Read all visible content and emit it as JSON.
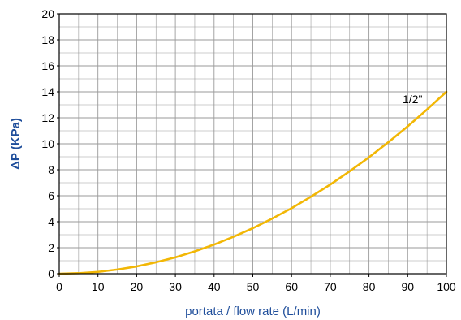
{
  "chart_data": {
    "type": "line",
    "title": "",
    "xlabel": "portata / flow rate (L/min)",
    "ylabel": "ΔP (KPa)",
    "xlim": [
      0,
      100
    ],
    "ylim": [
      0,
      20
    ],
    "x_ticks": [
      0,
      10,
      20,
      30,
      40,
      50,
      60,
      70,
      80,
      90,
      100
    ],
    "y_ticks": [
      0,
      2,
      4,
      6,
      8,
      10,
      12,
      14,
      16,
      18,
      20
    ],
    "grid": true,
    "series": [
      {
        "name": "1/2\"",
        "color": "#f2b705",
        "x": [
          0,
          5,
          10,
          15,
          20,
          25,
          30,
          35,
          40,
          45,
          50,
          55,
          60,
          65,
          70,
          75,
          80,
          85,
          90,
          95,
          100
        ],
        "y": [
          0,
          0.04,
          0.14,
          0.32,
          0.56,
          0.88,
          1.26,
          1.72,
          2.24,
          2.84,
          3.5,
          4.24,
          5.04,
          5.92,
          6.86,
          7.88,
          8.96,
          10.12,
          11.34,
          12.64,
          14.0
        ]
      }
    ],
    "colors": {
      "axis_title": "#1f4e9b",
      "grid": "#9a9a9a",
      "axis": "#000000"
    }
  }
}
